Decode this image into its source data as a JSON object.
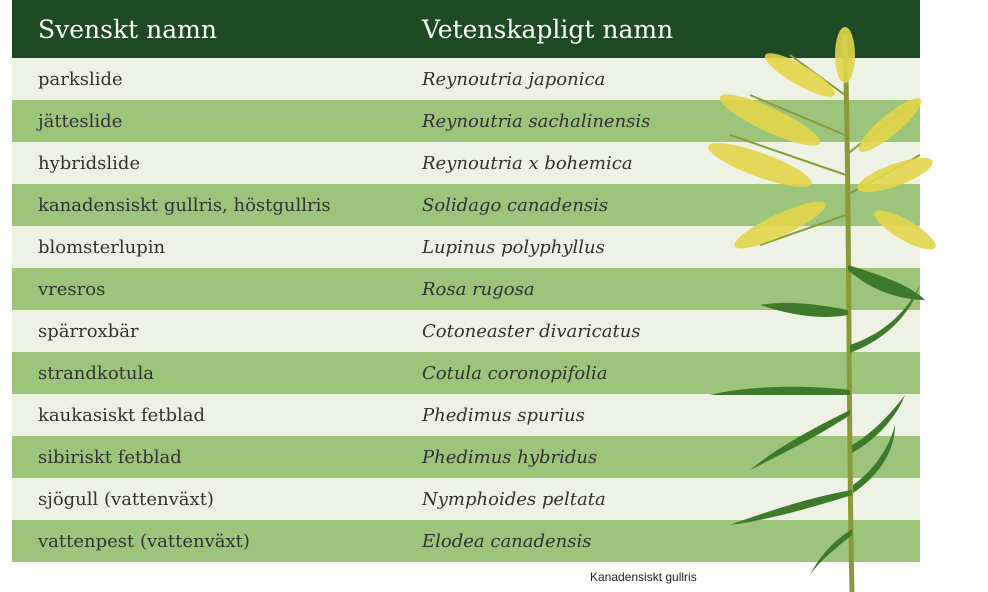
{
  "table": {
    "header": [
      "Svenskt namn",
      "Vetenskapligt namn"
    ],
    "rows": [
      [
        "parkslide",
        "Reynoutria japonica"
      ],
      [
        "jätteslide",
        "Reynoutria sachalinensis"
      ],
      [
        "hybridslide",
        "Reynoutria x bohemica"
      ],
      [
        "kanadensiskt gullris, höstgullris",
        "Solidago canadensis"
      ],
      [
        "blomsterlupin",
        "Lupinus polyphyllus"
      ],
      [
        "vresros",
        "Rosa rugosa"
      ],
      [
        "spärroxbär",
        "Cotoneaster divaricatus"
      ],
      [
        "strandkotula",
        "Cotula coronopifolia"
      ],
      [
        "kaukasiskt fetblad",
        "Phedimus spurius"
      ],
      [
        "sibiriskt fetblad",
        "Phedimus hybridus"
      ],
      [
        "sjögull (vattenväxt)",
        "Nymphoides peltata"
      ],
      [
        "vattenpest (vattenväxt)",
        "Elodea canadensis"
      ]
    ]
  },
  "caption": "Kanadensiskt gullris"
}
